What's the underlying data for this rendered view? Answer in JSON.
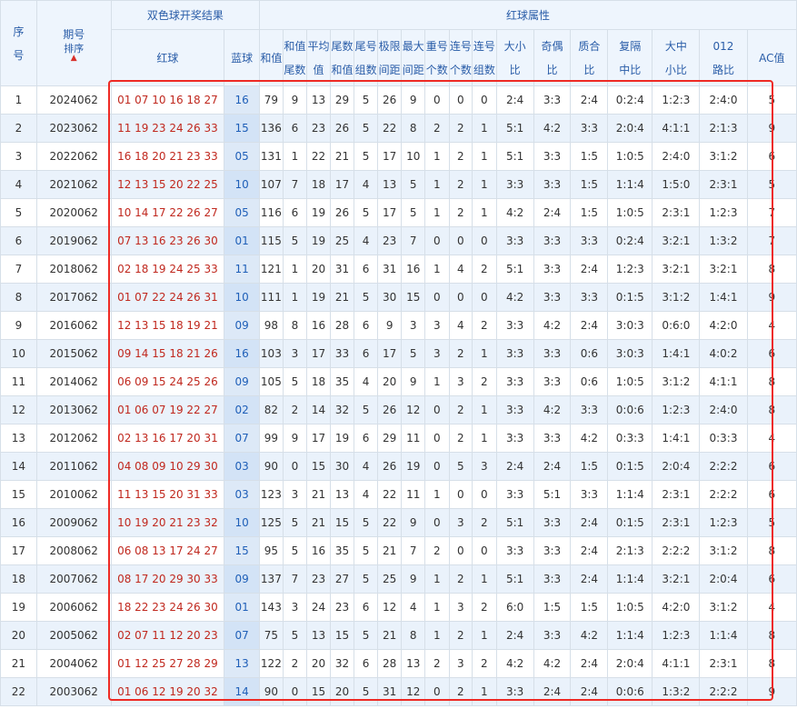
{
  "headers": {
    "seq": [
      "序",
      "号"
    ],
    "period": "期号",
    "sort": "排序",
    "draw_result": "双色球开奖结果",
    "red_ball_attr": "红球属性",
    "red": "红球",
    "blue": "蓝球",
    "sum": "和值",
    "sum_tail": [
      "和值",
      "尾数"
    ],
    "avg": [
      "平均",
      "值"
    ],
    "tail_sum": [
      "尾数",
      "和值"
    ],
    "tail_groups": [
      "尾号",
      "组数"
    ],
    "extreme_gap": [
      "极限",
      "间距"
    ],
    "max_gap": [
      "最大",
      "间距"
    ],
    "repeat_count": [
      "重号",
      "个数"
    ],
    "consec_count": [
      "连号",
      "个数"
    ],
    "consec_groups": [
      "连号",
      "组数"
    ],
    "big_small": [
      "大小",
      "比"
    ],
    "odd_even": [
      "奇偶",
      "比"
    ],
    "prime_comp": [
      "质合",
      "比"
    ],
    "rep_jump_mid": [
      "复隔",
      "中比"
    ],
    "big_mid_small": [
      "大中",
      "小比"
    ],
    "route012": [
      "012",
      "路比"
    ],
    "ac": "AC值"
  },
  "rows": [
    {
      "seq": "1",
      "period": "2024062",
      "red": "01 07 10 16 18 27",
      "blue": "16",
      "sum": "79",
      "sum_tail": "9",
      "avg": "13",
      "tail_sum": "29",
      "tail_groups": "5",
      "extreme": "26",
      "max_gap": "9",
      "repeat": "0",
      "consec": "0",
      "consec_groups": "0",
      "bs": "2:4",
      "oe": "3:3",
      "pc": "2:4",
      "rjm": "0:2:4",
      "bms": "1:2:3",
      "r012": "2:4:0",
      "ac": "5"
    },
    {
      "seq": "2",
      "period": "2023062",
      "red": "11 19 23 24 26 33",
      "blue": "15",
      "sum": "136",
      "sum_tail": "6",
      "avg": "23",
      "tail_sum": "26",
      "tail_groups": "5",
      "extreme": "22",
      "max_gap": "8",
      "repeat": "2",
      "consec": "2",
      "consec_groups": "1",
      "bs": "5:1",
      "oe": "4:2",
      "pc": "3:3",
      "rjm": "2:0:4",
      "bms": "4:1:1",
      "r012": "2:1:3",
      "ac": "9"
    },
    {
      "seq": "3",
      "period": "2022062",
      "red": "16 18 20 21 23 33",
      "blue": "05",
      "sum": "131",
      "sum_tail": "1",
      "avg": "22",
      "tail_sum": "21",
      "tail_groups": "5",
      "extreme": "17",
      "max_gap": "10",
      "repeat": "1",
      "consec": "2",
      "consec_groups": "1",
      "bs": "5:1",
      "oe": "3:3",
      "pc": "1:5",
      "rjm": "1:0:5",
      "bms": "2:4:0",
      "r012": "3:1:2",
      "ac": "6"
    },
    {
      "seq": "4",
      "period": "2021062",
      "red": "12 13 15 20 22 25",
      "blue": "10",
      "sum": "107",
      "sum_tail": "7",
      "avg": "18",
      "tail_sum": "17",
      "tail_groups": "4",
      "extreme": "13",
      "max_gap": "5",
      "repeat": "1",
      "consec": "2",
      "consec_groups": "1",
      "bs": "3:3",
      "oe": "3:3",
      "pc": "1:5",
      "rjm": "1:1:4",
      "bms": "1:5:0",
      "r012": "2:3:1",
      "ac": "5"
    },
    {
      "seq": "5",
      "period": "2020062",
      "red": "10 14 17 22 26 27",
      "blue": "05",
      "sum": "116",
      "sum_tail": "6",
      "avg": "19",
      "tail_sum": "26",
      "tail_groups": "5",
      "extreme": "17",
      "max_gap": "5",
      "repeat": "1",
      "consec": "2",
      "consec_groups": "1",
      "bs": "4:2",
      "oe": "2:4",
      "pc": "1:5",
      "rjm": "1:0:5",
      "bms": "2:3:1",
      "r012": "1:2:3",
      "ac": "7"
    },
    {
      "seq": "6",
      "period": "2019062",
      "red": "07 13 16 23 26 30",
      "blue": "01",
      "sum": "115",
      "sum_tail": "5",
      "avg": "19",
      "tail_sum": "25",
      "tail_groups": "4",
      "extreme": "23",
      "max_gap": "7",
      "repeat": "0",
      "consec": "0",
      "consec_groups": "0",
      "bs": "3:3",
      "oe": "3:3",
      "pc": "3:3",
      "rjm": "0:2:4",
      "bms": "3:2:1",
      "r012": "1:3:2",
      "ac": "7"
    },
    {
      "seq": "7",
      "period": "2018062",
      "red": "02 18 19 24 25 33",
      "blue": "11",
      "sum": "121",
      "sum_tail": "1",
      "avg": "20",
      "tail_sum": "31",
      "tail_groups": "6",
      "extreme": "31",
      "max_gap": "16",
      "repeat": "1",
      "consec": "4",
      "consec_groups": "2",
      "bs": "5:1",
      "oe": "3:3",
      "pc": "2:4",
      "rjm": "1:2:3",
      "bms": "3:2:1",
      "r012": "3:2:1",
      "ac": "8"
    },
    {
      "seq": "8",
      "period": "2017062",
      "red": "01 07 22 24 26 31",
      "blue": "10",
      "sum": "111",
      "sum_tail": "1",
      "avg": "19",
      "tail_sum": "21",
      "tail_groups": "5",
      "extreme": "30",
      "max_gap": "15",
      "repeat": "0",
      "consec": "0",
      "consec_groups": "0",
      "bs": "4:2",
      "oe": "3:3",
      "pc": "3:3",
      "rjm": "0:1:5",
      "bms": "3:1:2",
      "r012": "1:4:1",
      "ac": "9"
    },
    {
      "seq": "9",
      "period": "2016062",
      "red": "12 13 15 18 19 21",
      "blue": "09",
      "sum": "98",
      "sum_tail": "8",
      "avg": "16",
      "tail_sum": "28",
      "tail_groups": "6",
      "extreme": "9",
      "max_gap": "3",
      "repeat": "3",
      "consec": "4",
      "consec_groups": "2",
      "bs": "3:3",
      "oe": "4:2",
      "pc": "2:4",
      "rjm": "3:0:3",
      "bms": "0:6:0",
      "r012": "4:2:0",
      "ac": "4"
    },
    {
      "seq": "10",
      "period": "2015062",
      "red": "09 14 15 18 21 26",
      "blue": "16",
      "sum": "103",
      "sum_tail": "3",
      "avg": "17",
      "tail_sum": "33",
      "tail_groups": "6",
      "extreme": "17",
      "max_gap": "5",
      "repeat": "3",
      "consec": "2",
      "consec_groups": "1",
      "bs": "3:3",
      "oe": "3:3",
      "pc": "0:6",
      "rjm": "3:0:3",
      "bms": "1:4:1",
      "r012": "4:0:2",
      "ac": "6"
    },
    {
      "seq": "11",
      "period": "2014062",
      "red": "06 09 15 24 25 26",
      "blue": "09",
      "sum": "105",
      "sum_tail": "5",
      "avg": "18",
      "tail_sum": "35",
      "tail_groups": "4",
      "extreme": "20",
      "max_gap": "9",
      "repeat": "1",
      "consec": "3",
      "consec_groups": "2",
      "bs": "3:3",
      "oe": "3:3",
      "pc": "0:6",
      "rjm": "1:0:5",
      "bms": "3:1:2",
      "r012": "4:1:1",
      "ac": "8"
    },
    {
      "seq": "12",
      "period": "2013062",
      "red": "01 06 07 19 22 27",
      "blue": "02",
      "sum": "82",
      "sum_tail": "2",
      "avg": "14",
      "tail_sum": "32",
      "tail_groups": "5",
      "extreme": "26",
      "max_gap": "12",
      "repeat": "0",
      "consec": "2",
      "consec_groups": "1",
      "bs": "3:3",
      "oe": "4:2",
      "pc": "3:3",
      "rjm": "0:0:6",
      "bms": "1:2:3",
      "r012": "2:4:0",
      "ac": "8"
    },
    {
      "seq": "13",
      "period": "2012062",
      "red": "02 13 16 17 20 31",
      "blue": "07",
      "sum": "99",
      "sum_tail": "9",
      "avg": "17",
      "tail_sum": "19",
      "tail_groups": "6",
      "extreme": "29",
      "max_gap": "11",
      "repeat": "0",
      "consec": "2",
      "consec_groups": "1",
      "bs": "3:3",
      "oe": "3:3",
      "pc": "4:2",
      "rjm": "0:3:3",
      "bms": "1:4:1",
      "r012": "0:3:3",
      "ac": "4"
    },
    {
      "seq": "14",
      "period": "2011062",
      "red": "04 08 09 10 29 30",
      "blue": "03",
      "sum": "90",
      "sum_tail": "0",
      "avg": "15",
      "tail_sum": "30",
      "tail_groups": "4",
      "extreme": "26",
      "max_gap": "19",
      "repeat": "0",
      "consec": "5",
      "consec_groups": "3",
      "bs": "2:4",
      "oe": "2:4",
      "pc": "1:5",
      "rjm": "0:1:5",
      "bms": "2:0:4",
      "r012": "2:2:2",
      "ac": "6"
    },
    {
      "seq": "15",
      "period": "2010062",
      "red": "11 13 15 20 31 33",
      "blue": "03",
      "sum": "123",
      "sum_tail": "3",
      "avg": "21",
      "tail_sum": "13",
      "tail_groups": "4",
      "extreme": "22",
      "max_gap": "11",
      "repeat": "1",
      "consec": "0",
      "consec_groups": "0",
      "bs": "3:3",
      "oe": "5:1",
      "pc": "3:3",
      "rjm": "1:1:4",
      "bms": "2:3:1",
      "r012": "2:2:2",
      "ac": "6"
    },
    {
      "seq": "16",
      "period": "2009062",
      "red": "10 19 20 21 23 32",
      "blue": "10",
      "sum": "125",
      "sum_tail": "5",
      "avg": "21",
      "tail_sum": "15",
      "tail_groups": "5",
      "extreme": "22",
      "max_gap": "9",
      "repeat": "0",
      "consec": "3",
      "consec_groups": "2",
      "bs": "5:1",
      "oe": "3:3",
      "pc": "2:4",
      "rjm": "0:1:5",
      "bms": "2:3:1",
      "r012": "1:2:3",
      "ac": "5"
    },
    {
      "seq": "17",
      "period": "2008062",
      "red": "06 08 13 17 24 27",
      "blue": "15",
      "sum": "95",
      "sum_tail": "5",
      "avg": "16",
      "tail_sum": "35",
      "tail_groups": "5",
      "extreme": "21",
      "max_gap": "7",
      "repeat": "2",
      "consec": "0",
      "consec_groups": "0",
      "bs": "3:3",
      "oe": "3:3",
      "pc": "2:4",
      "rjm": "2:1:3",
      "bms": "2:2:2",
      "r012": "3:1:2",
      "ac": "8"
    },
    {
      "seq": "18",
      "period": "2007062",
      "red": "08 17 20 29 30 33",
      "blue": "09",
      "sum": "137",
      "sum_tail": "7",
      "avg": "23",
      "tail_sum": "27",
      "tail_groups": "5",
      "extreme": "25",
      "max_gap": "9",
      "repeat": "1",
      "consec": "2",
      "consec_groups": "1",
      "bs": "5:1",
      "oe": "3:3",
      "pc": "2:4",
      "rjm": "1:1:4",
      "bms": "3:2:1",
      "r012": "2:0:4",
      "ac": "6"
    },
    {
      "seq": "19",
      "period": "2006062",
      "red": "18 22 23 24 26 30",
      "blue": "01",
      "sum": "143",
      "sum_tail": "3",
      "avg": "24",
      "tail_sum": "23",
      "tail_groups": "6",
      "extreme": "12",
      "max_gap": "4",
      "repeat": "1",
      "consec": "3",
      "consec_groups": "2",
      "bs": "6:0",
      "oe": "1:5",
      "pc": "1:5",
      "rjm": "1:0:5",
      "bms": "4:2:0",
      "r012": "3:1:2",
      "ac": "4"
    },
    {
      "seq": "20",
      "period": "2005062",
      "red": "02 07 11 12 20 23",
      "blue": "07",
      "sum": "75",
      "sum_tail": "5",
      "avg": "13",
      "tail_sum": "15",
      "tail_groups": "5",
      "extreme": "21",
      "max_gap": "8",
      "repeat": "1",
      "consec": "2",
      "consec_groups": "1",
      "bs": "2:4",
      "oe": "3:3",
      "pc": "4:2",
      "rjm": "1:1:4",
      "bms": "1:2:3",
      "r012": "1:1:4",
      "ac": "8"
    },
    {
      "seq": "21",
      "period": "2004062",
      "red": "01 12 25 27 28 29",
      "blue": "13",
      "sum": "122",
      "sum_tail": "2",
      "avg": "20",
      "tail_sum": "32",
      "tail_groups": "6",
      "extreme": "28",
      "max_gap": "13",
      "repeat": "2",
      "consec": "3",
      "consec_groups": "2",
      "bs": "4:2",
      "oe": "4:2",
      "pc": "2:4",
      "rjm": "2:0:4",
      "bms": "4:1:1",
      "r012": "2:3:1",
      "ac": "8"
    },
    {
      "seq": "22",
      "period": "2003062",
      "red": "01 06 12 19 20 32",
      "blue": "14",
      "sum": "90",
      "sum_tail": "0",
      "avg": "15",
      "tail_sum": "20",
      "tail_groups": "5",
      "extreme": "31",
      "max_gap": "12",
      "repeat": "0",
      "consec": "2",
      "consec_groups": "1",
      "bs": "3:3",
      "oe": "2:4",
      "pc": "2:4",
      "rjm": "0:0:6",
      "bms": "1:3:2",
      "r012": "2:2:2",
      "ac": "9"
    }
  ],
  "colors": {
    "red_ball": "#c0281e",
    "blue_ball": "#1f5fb8",
    "header_text": "#2a5da8",
    "highlight_border": "#ee2a24"
  }
}
